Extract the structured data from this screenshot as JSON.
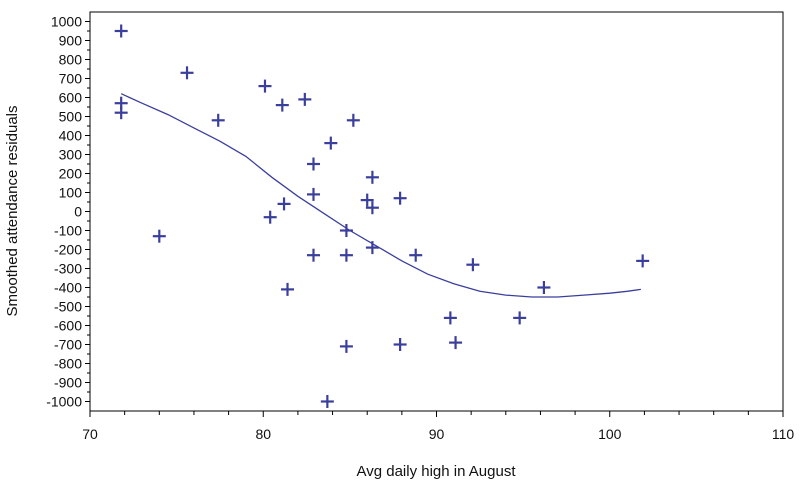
{
  "chart_data": {
    "type": "scatter",
    "title": "",
    "xlabel": "Avg daily high in August",
    "ylabel": "Smoothed attendance residuals",
    "xlim": [
      70,
      110
    ],
    "ylim": [
      -1050,
      1050
    ],
    "x_ticks": [
      70,
      80,
      90,
      100,
      110
    ],
    "x_tick_labels": [
      "70",
      "80",
      "90",
      "100",
      "110"
    ],
    "y_ticks": [
      1000,
      900,
      800,
      700,
      600,
      500,
      400,
      300,
      200,
      100,
      0,
      -100,
      -200,
      -300,
      -400,
      -500,
      -600,
      -700,
      -800,
      -900,
      -1000
    ],
    "y_tick_labels": [
      "1000",
      "900",
      "800",
      "700",
      "600",
      "500",
      "400",
      "300",
      "200",
      "100",
      "0",
      "-100",
      "-200",
      "-300",
      "-400",
      "-500",
      "-600",
      "-700",
      "-800",
      "-900",
      "-1000"
    ],
    "grid": false,
    "marker": "plus",
    "color": "#3b3f9c",
    "points": [
      {
        "x": 71.8,
        "y": 950
      },
      {
        "x": 71.8,
        "y": 570
      },
      {
        "x": 71.8,
        "y": 520
      },
      {
        "x": 74.0,
        "y": -130
      },
      {
        "x": 75.6,
        "y": 730
      },
      {
        "x": 77.4,
        "y": 480
      },
      {
        "x": 80.1,
        "y": 660
      },
      {
        "x": 80.4,
        "y": -30
      },
      {
        "x": 81.1,
        "y": 560
      },
      {
        "x": 81.2,
        "y": 40
      },
      {
        "x": 81.4,
        "y": -410
      },
      {
        "x": 82.4,
        "y": 590
      },
      {
        "x": 82.9,
        "y": 250
      },
      {
        "x": 82.9,
        "y": 90
      },
      {
        "x": 82.9,
        "y": -230
      },
      {
        "x": 83.9,
        "y": 360
      },
      {
        "x": 83.7,
        "y": -1000
      },
      {
        "x": 84.8,
        "y": -100
      },
      {
        "x": 84.8,
        "y": -230
      },
      {
        "x": 84.8,
        "y": -710
      },
      {
        "x": 85.2,
        "y": 480
      },
      {
        "x": 86.0,
        "y": 60
      },
      {
        "x": 86.3,
        "y": 180
      },
      {
        "x": 86.3,
        "y": 20
      },
      {
        "x": 86.3,
        "y": -190
      },
      {
        "x": 87.9,
        "y": 70
      },
      {
        "x": 87.9,
        "y": -700
      },
      {
        "x": 88.8,
        "y": -230
      },
      {
        "x": 90.8,
        "y": -560
      },
      {
        "x": 91.1,
        "y": -690
      },
      {
        "x": 92.1,
        "y": -280
      },
      {
        "x": 94.8,
        "y": -560
      },
      {
        "x": 96.2,
        "y": -400
      },
      {
        "x": 101.9,
        "y": -260
      }
    ],
    "smooth_line": [
      {
        "x": 71.8,
        "y": 620
      },
      {
        "x": 73.0,
        "y": 570
      },
      {
        "x": 74.5,
        "y": 510
      },
      {
        "x": 76.0,
        "y": 440
      },
      {
        "x": 77.5,
        "y": 370
      },
      {
        "x": 79.0,
        "y": 290
      },
      {
        "x": 80.5,
        "y": 180
      },
      {
        "x": 82.0,
        "y": 80
      },
      {
        "x": 83.5,
        "y": -10
      },
      {
        "x": 85.0,
        "y": -100
      },
      {
        "x": 86.5,
        "y": -180
      },
      {
        "x": 88.0,
        "y": -260
      },
      {
        "x": 89.5,
        "y": -330
      },
      {
        "x": 91.0,
        "y": -380
      },
      {
        "x": 92.5,
        "y": -420
      },
      {
        "x": 94.0,
        "y": -440
      },
      {
        "x": 95.5,
        "y": -450
      },
      {
        "x": 97.0,
        "y": -450
      },
      {
        "x": 98.5,
        "y": -440
      },
      {
        "x": 100.0,
        "y": -430
      },
      {
        "x": 101.0,
        "y": -420
      },
      {
        "x": 101.8,
        "y": -410
      }
    ]
  }
}
